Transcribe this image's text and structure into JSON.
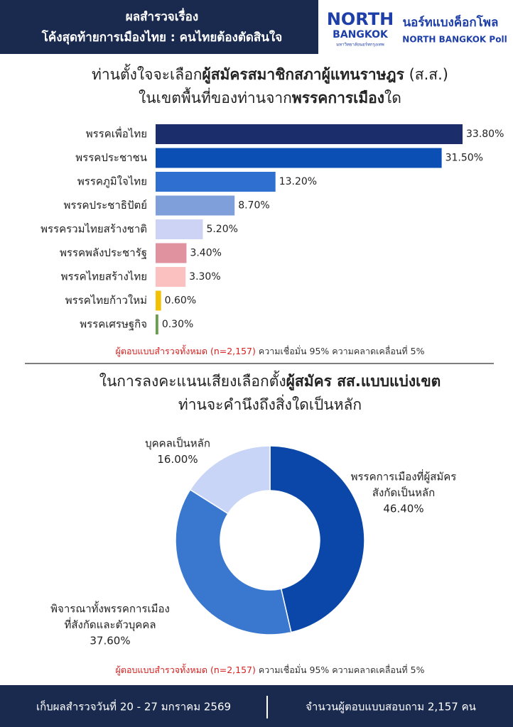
{
  "header": {
    "title": [
      "ผลสำรวจเรื่อง",
      "โค้งสุดท้ายการเมืองไทย : คนไทยต้องตัดสินใจ"
    ],
    "logo": [
      "NORTH",
      "BANGKOK"
    ],
    "logo_sub": "มหาวิทยาลัยนอร์ทกรุงเทพ",
    "poll_name": "นอร์ทแบงค็อกโพล",
    "poll_name_en": "NORTH BANGKOK Poll"
  },
  "chart_data": [
    {
      "type": "bar",
      "title": [
        [
          "ท่านตั้งใจจะเลือก",
          "ผู้สมัครสมาชิกสภาผู้แทนราษฎร",
          " (ส.ส.)"
        ],
        [
          "ในเขตพื้นที่ของท่านจาก",
          "พรรคการเมือง",
          "ใด"
        ]
      ],
      "categories": [
        "พรรคเพื่อไทย",
        "พรรคประชาชน",
        "พรรคภูมิใจไทย",
        "พรรคประชาธิปัตย์",
        "พรรครวมไทยสร้างชาติ",
        "พรรคพลังประชารัฐ",
        "พรรคไทยสร้างไทย",
        "พรรคไทยก้าวใหม่",
        "พรรคเศรษฐกิจ"
      ],
      "values": [
        33.8,
        31.5,
        13.2,
        8.7,
        5.2,
        3.4,
        3.3,
        0.6,
        0.3
      ],
      "value_labels": [
        "33.80%",
        "31.50%",
        "13.20%",
        "8.70%",
        "5.20%",
        "3.40%",
        "3.30%",
        "0.60%",
        "0.30%"
      ],
      "colors": [
        "#1b2d6b",
        "#0b4fb5",
        "#2f6fd0",
        "#7f9fdb",
        "#cdd3f5",
        "#e0929f",
        "#fbc1c1",
        "#f2c200",
        "#6a9e4c"
      ],
      "note": [
        "ผู้ตอบแบบสำรวจทั้งหมด (n=2,157)",
        " ความเชื่อมั่น 95% ความคลาดเคลื่อนที่ 5%"
      ]
    },
    {
      "type": "pie",
      "title": [
        [
          "ในการลงคะแนนเสียงเลือกตั้ง",
          "ผู้สมัคร สส.แบบแบ่งเขต"
        ],
        [
          "ท่านจะคำนึงถึงสิ่งใดเป็นหลัก"
        ]
      ],
      "categories": [
        [
          "พรรคการเมืองที่ผู้สมัคร",
          "สังกัดเป็นหลัก"
        ],
        [
          "พิจารณาทั้งพรรคการเมือง",
          "ที่สังกัดและตัวบุคคล"
        ],
        [
          "บุคคลเป็นหลัก"
        ]
      ],
      "values": [
        46.4,
        37.6,
        16.0
      ],
      "value_labels": [
        "46.40%",
        "37.60%",
        "16.00%"
      ],
      "colors": [
        "#0a47a9",
        "#3a78d0",
        "#c9d5f6"
      ],
      "note": [
        "ผู้ตอบแบบสำรวจทั้งหมด (n=2,157)",
        " ความเชื่อมั่น 95% ความคลาดเคลื่อนที่ 5%"
      ]
    }
  ],
  "footer": [
    "เก็บผลสำรวจวันที่ 20 - 27 มกราคม 2569",
    "จำนวนผู้ตอบแบบสอบถาม 2,157 คน"
  ]
}
